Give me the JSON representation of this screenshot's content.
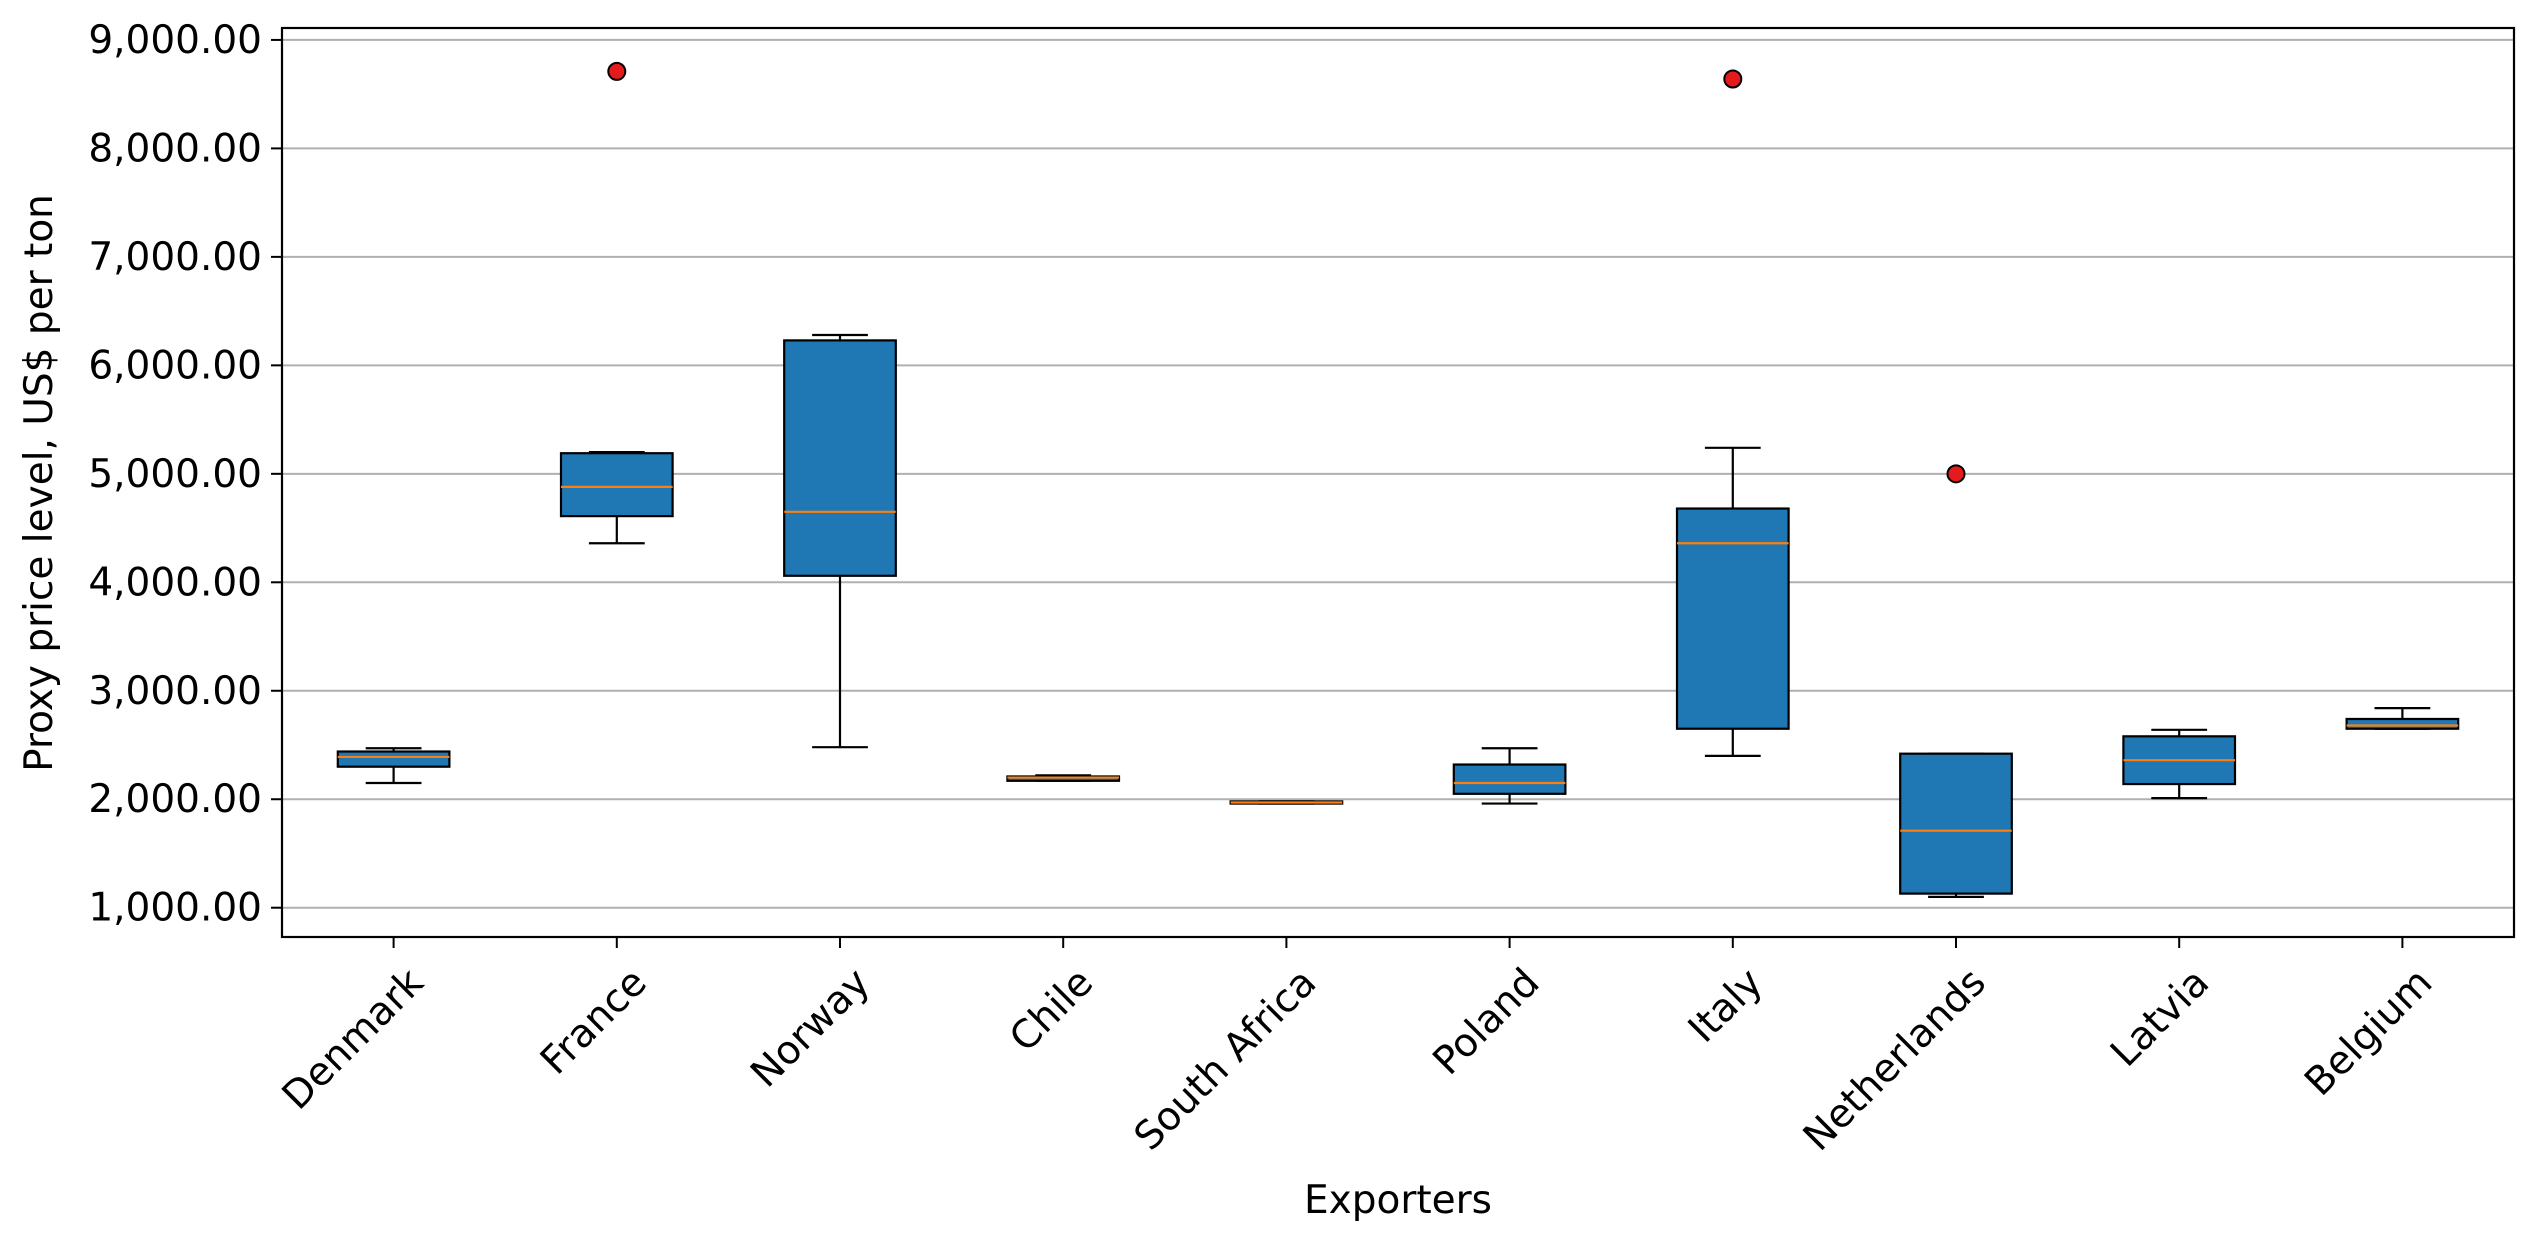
{
  "chart_data": {
    "type": "box",
    "title": "",
    "xlabel": "Exporters",
    "ylabel": "Proxy price level, US$ per ton",
    "ylim": [
      730,
      9110
    ],
    "yticks": [
      1000,
      2000,
      3000,
      4000,
      5000,
      6000,
      7000,
      8000,
      9000
    ],
    "ytick_labels": [
      "1,000.00",
      "2,000.00",
      "3,000.00",
      "4,000.00",
      "5,000.00",
      "6,000.00",
      "7,000.00",
      "8,000.00",
      "9,000.00"
    ],
    "grid": "horizontal",
    "categories": [
      "Denmark",
      "France",
      "Norway",
      "Chile",
      "South Africa",
      "Poland",
      "Italy",
      "Netherlands",
      "Latvia",
      "Belgium"
    ],
    "boxes": [
      {
        "whisker_low": 2150,
        "q1": 2300,
        "median": 2390,
        "q3": 2440,
        "whisker_high": 2470,
        "outliers": []
      },
      {
        "whisker_low": 4360,
        "q1": 4610,
        "median": 4880,
        "q3": 5190,
        "whisker_high": 5200,
        "outliers": [
          8710
        ]
      },
      {
        "whisker_low": 2480,
        "q1": 4060,
        "median": 4650,
        "q3": 6230,
        "whisker_high": 6280,
        "outliers": []
      },
      {
        "whisker_low": 2170,
        "q1": 2170,
        "median": 2200,
        "q3": 2210,
        "whisker_high": 2220,
        "outliers": []
      },
      {
        "whisker_low": 1960,
        "q1": 1960,
        "median": 1970,
        "q3": 1980,
        "whisker_high": 1980,
        "outliers": []
      },
      {
        "whisker_low": 1960,
        "q1": 2050,
        "median": 2150,
        "q3": 2320,
        "whisker_high": 2470,
        "outliers": []
      },
      {
        "whisker_low": 2400,
        "q1": 2650,
        "median": 4360,
        "q3": 4680,
        "whisker_high": 5240,
        "outliers": [
          8640
        ]
      },
      {
        "whisker_low": 1100,
        "q1": 1130,
        "median": 1710,
        "q3": 2420,
        "whisker_high": 2420,
        "outliers": [
          5000
        ]
      },
      {
        "whisker_low": 2010,
        "q1": 2140,
        "median": 2360,
        "q3": 2580,
        "whisker_high": 2640,
        "outliers": []
      },
      {
        "whisker_low": 2650,
        "q1": 2650,
        "median": 2680,
        "q3": 2740,
        "whisker_high": 2840,
        "outliers": []
      }
    ],
    "colors": {
      "box_fill": "#1f77b4",
      "median": "#ff7f0e",
      "outlier": "#e41a1c",
      "grid": "#b0b0b0"
    }
  }
}
